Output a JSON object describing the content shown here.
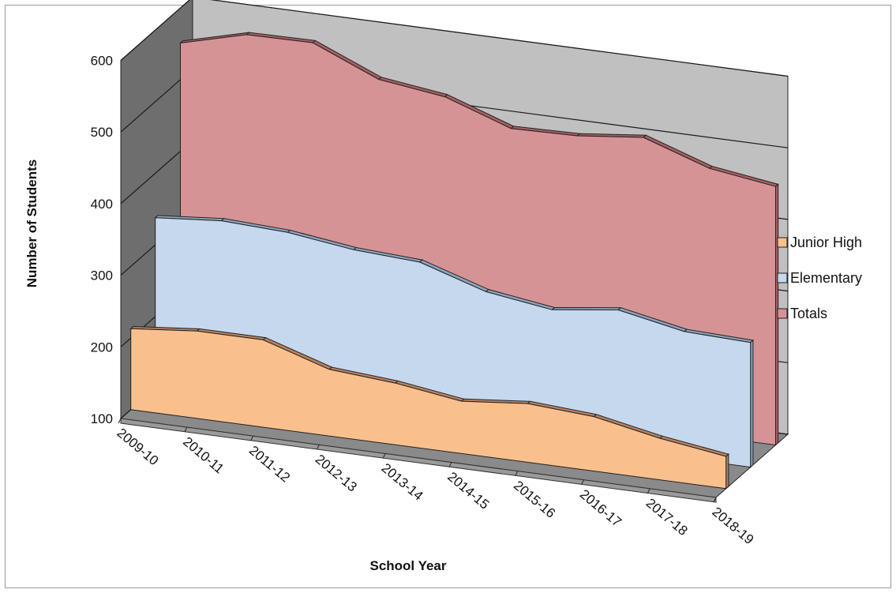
{
  "chart_data": {
    "type": "area",
    "title": "",
    "xlabel": "School Year",
    "ylabel": "Number of Students",
    "ylim": [
      100,
      600
    ],
    "yticks": [
      100,
      200,
      300,
      400,
      500,
      600
    ],
    "categories": [
      "2009-10",
      "2010-11",
      "2011-12",
      "2012-13",
      "2013-14",
      "2014-15",
      "2015-16",
      "2016-17",
      "2017-18",
      "2018-19"
    ],
    "series": [
      {
        "name": "Junior High",
        "values": [
          213,
          222,
          222,
          193,
          186,
          173,
          182,
          176,
          158,
          145
        ]
      },
      {
        "name": "Elementary",
        "values": [
          338,
          346,
          342,
          330,
          325,
          296,
          283,
          295,
          277,
          274
        ]
      },
      {
        "name": "Totals",
        "values": [
          551,
          575,
          576,
          537,
          525,
          493,
          495,
          505,
          474,
          461
        ]
      }
    ],
    "colors": {
      "Junior High": "#f9c08d",
      "Elementary": "#c5d8ee",
      "Totals": "#d69395"
    },
    "legend_position": "right",
    "style": "3d-area",
    "grid": true
  }
}
